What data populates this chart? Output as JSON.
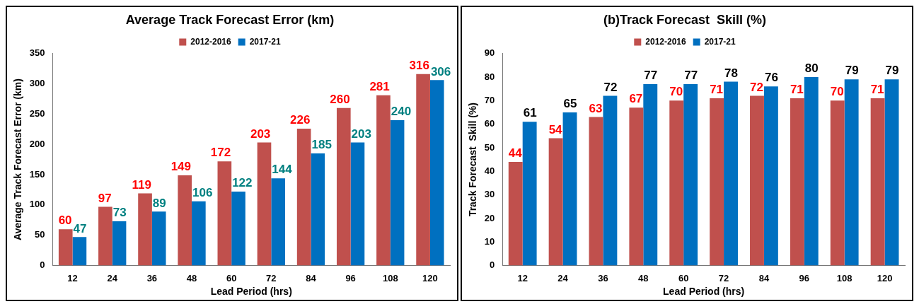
{
  "chart_data": [
    {
      "type": "bar",
      "title": "Average Track Forecast Error (km)",
      "xlabel": "Lead Period (hrs)",
      "ylabel": "Average Track Forecast Error (km)",
      "categories": [
        "12",
        "24",
        "36",
        "48",
        "60",
        "72",
        "84",
        "96",
        "108",
        "120"
      ],
      "series": [
        {
          "name": "2012-2016",
          "color": "#c0504d",
          "values": [
            60,
            97,
            119,
            149,
            172,
            203,
            226,
            260,
            281,
            316
          ]
        },
        {
          "name": "2017-21",
          "color": "#0070c0",
          "values": [
            47,
            73,
            89,
            106,
            122,
            144,
            185,
            203,
            240,
            306
          ]
        }
      ],
      "ylim": [
        0,
        350
      ],
      "yticks": [
        0,
        50,
        100,
        150,
        200,
        250,
        300,
        350
      ],
      "grid": false,
      "legend": "top",
      "data_labels": true
    },
    {
      "type": "bar",
      "title": "(b)Track Forecast  Skill (%)",
      "xlabel": "Lead Period (hrs)",
      "ylabel": "Track Forecast  Skill (%)",
      "categories": [
        "12",
        "24",
        "36",
        "48",
        "60",
        "72",
        "84",
        "96",
        "108",
        "120"
      ],
      "series": [
        {
          "name": "2012-2016",
          "color": "#c0504d",
          "values": [
            44,
            54,
            63,
            67,
            70,
            71,
            72,
            71,
            70,
            71
          ]
        },
        {
          "name": "2017-21",
          "color": "#0070c0",
          "values": [
            61,
            65,
            72,
            77,
            77,
            78,
            76,
            80,
            79,
            79
          ]
        }
      ],
      "ylim": [
        0,
        90
      ],
      "yticks": [
        0,
        10,
        20,
        30,
        40,
        50,
        60,
        70,
        80,
        90
      ],
      "grid": false,
      "legend": "top",
      "data_labels": true
    }
  ]
}
